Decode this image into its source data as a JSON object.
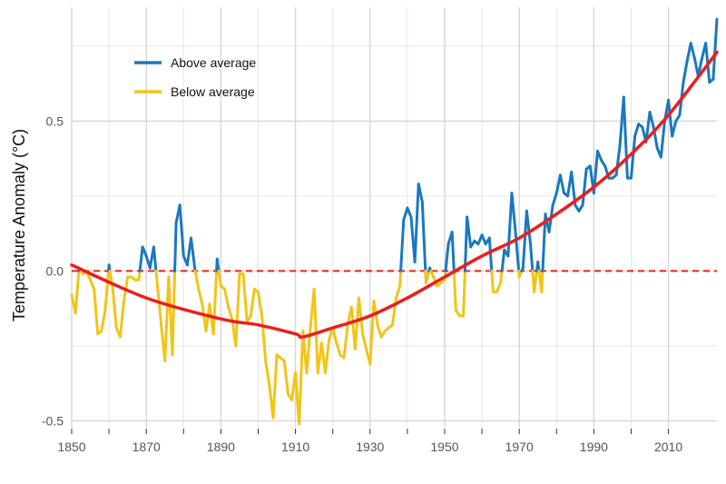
{
  "chart_data": {
    "type": "line",
    "title": "",
    "xlabel": "",
    "ylabel": "Temperature Anomaly (°C)",
    "xlim": [
      1850,
      2023
    ],
    "ylim": [
      -0.52,
      0.88
    ],
    "x_ticks": [
      1850,
      1870,
      1890,
      1910,
      1930,
      1950,
      1970,
      1990,
      2010
    ],
    "x_tick_labels": [
      "1850",
      "1870",
      "1890",
      "1910",
      "1930",
      "1950",
      "1970",
      "1990",
      "2010"
    ],
    "y_ticks": [
      -0.5,
      0.0,
      0.5
    ],
    "y_tick_labels": [
      "-0.5",
      "0.0",
      "0.5"
    ],
    "grid": true,
    "legend": {
      "position": "top-left",
      "entries": [
        {
          "label": "Above average",
          "color": "#1a78be"
        },
        {
          "label": "Below average",
          "color": "#f2c417"
        }
      ]
    },
    "reference_line": {
      "y": 0,
      "color": "#e8211b",
      "style": "dashed"
    },
    "colors": {
      "above": "#1a78be",
      "below": "#f2c417",
      "trend": "#ee1c1c"
    },
    "series": [
      {
        "name": "Above average",
        "role": "anomaly",
        "x": [
          1850,
          1851,
          1852,
          1853,
          1854,
          1855,
          1856,
          1857,
          1858,
          1859,
          1860,
          1861,
          1862,
          1863,
          1864,
          1865,
          1866,
          1867,
          1868,
          1869,
          1870,
          1871,
          1872,
          1873,
          1874,
          1875,
          1876,
          1877,
          1878,
          1879,
          1880,
          1881,
          1882,
          1883,
          1884,
          1885,
          1886,
          1887,
          1888,
          1889,
          1890,
          1891,
          1892,
          1893,
          1894,
          1895,
          1896,
          1897,
          1898,
          1899,
          1900,
          1901,
          1902,
          1903,
          1904,
          1905,
          1906,
          1907,
          1908,
          1909,
          1910,
          1911,
          1912,
          1913,
          1914,
          1915,
          1916,
          1917,
          1918,
          1919,
          1920,
          1921,
          1922,
          1923,
          1924,
          1925,
          1926,
          1927,
          1928,
          1929,
          1930,
          1931,
          1932,
          1933,
          1934,
          1935,
          1936,
          1937,
          1938,
          1939,
          1940,
          1941,
          1942,
          1943,
          1944,
          1945,
          1946,
          1947,
          1948,
          1949,
          1950,
          1951,
          1952,
          1953,
          1954,
          1955,
          1956,
          1957,
          1958,
          1959,
          1960,
          1961,
          1962,
          1963,
          1964,
          1965,
          1966,
          1967,
          1968,
          1969,
          1970,
          1971,
          1972,
          1973,
          1974,
          1975,
          1976,
          1977,
          1978,
          1979,
          1980,
          1981,
          1982,
          1983,
          1984,
          1985,
          1986,
          1987,
          1988,
          1989,
          1990,
          1991,
          1992,
          1993,
          1994,
          1995,
          1996,
          1997,
          1998,
          1999,
          2000,
          2001,
          2002,
          2003,
          2004,
          2005,
          2006,
          2007,
          2008,
          2009,
          2010,
          2011,
          2012,
          2013,
          2014,
          2015,
          2016,
          2017,
          2018,
          2019,
          2020,
          2021,
          2022,
          2023
        ],
        "y": [
          -0.08,
          -0.14,
          0.01,
          -0.01,
          0.0,
          -0.03,
          -0.06,
          -0.21,
          -0.2,
          -0.13,
          0.02,
          -0.06,
          -0.19,
          -0.22,
          -0.1,
          -0.02,
          -0.02,
          -0.03,
          -0.03,
          0.08,
          0.05,
          0.01,
          0.08,
          -0.05,
          -0.18,
          -0.3,
          -0.02,
          -0.28,
          0.16,
          0.22,
          0.05,
          0.02,
          0.11,
          0.01,
          -0.06,
          -0.11,
          -0.2,
          -0.11,
          -0.21,
          0.04,
          -0.05,
          -0.06,
          -0.12,
          -0.16,
          -0.25,
          -0.01,
          -0.01,
          -0.17,
          -0.15,
          -0.06,
          -0.07,
          -0.15,
          -0.3,
          -0.38,
          -0.49,
          -0.28,
          -0.29,
          -0.3,
          -0.41,
          -0.43,
          -0.34,
          -0.51,
          -0.2,
          -0.34,
          -0.19,
          -0.06,
          -0.34,
          -0.24,
          -0.34,
          -0.23,
          -0.19,
          -0.24,
          -0.28,
          -0.29,
          -0.18,
          -0.12,
          -0.26,
          -0.09,
          -0.21,
          -0.26,
          -0.31,
          -0.1,
          -0.18,
          -0.22,
          -0.2,
          -0.19,
          -0.18,
          -0.09,
          -0.05,
          0.17,
          0.21,
          0.18,
          0.03,
          0.29,
          0.23,
          -0.04,
          0.01,
          -0.02,
          -0.05,
          -0.04,
          -0.03,
          0.09,
          0.13,
          -0.13,
          -0.15,
          -0.15,
          0.18,
          0.08,
          0.1,
          0.09,
          0.12,
          0.09,
          0.11,
          -0.07,
          -0.07,
          -0.04,
          0.07,
          0.05,
          0.26,
          0.13,
          -0.02,
          0.01,
          0.2,
          0.09,
          -0.07,
          0.03,
          -0.07,
          0.19,
          0.13,
          0.22,
          0.26,
          0.32,
          0.26,
          0.25,
          0.33,
          0.22,
          0.2,
          0.22,
          0.34,
          0.35,
          0.26,
          0.4,
          0.37,
          0.35,
          0.31,
          0.31,
          0.32,
          0.42,
          0.58,
          0.31,
          0.31,
          0.45,
          0.49,
          0.48,
          0.43,
          0.53,
          0.48,
          0.41,
          0.38,
          0.5,
          0.57,
          0.45,
          0.5,
          0.52,
          0.63,
          0.7,
          0.76,
          0.71,
          0.65,
          0.71,
          0.76,
          0.63,
          0.64,
          0.84
        ]
      },
      {
        "name": "Trend",
        "role": "trend",
        "x": [
          1850,
          1870,
          1890,
          1900,
          1910,
          1912,
          1920,
          1930,
          1940,
          1950,
          1960,
          1970,
          1980,
          1990,
          2000,
          2010,
          2023
        ],
        "y": [
          0.02,
          -0.09,
          -0.16,
          -0.18,
          -0.21,
          -0.22,
          -0.19,
          -0.15,
          -0.09,
          -0.02,
          0.05,
          0.11,
          0.19,
          0.28,
          0.39,
          0.52,
          0.73
        ]
      }
    ]
  }
}
